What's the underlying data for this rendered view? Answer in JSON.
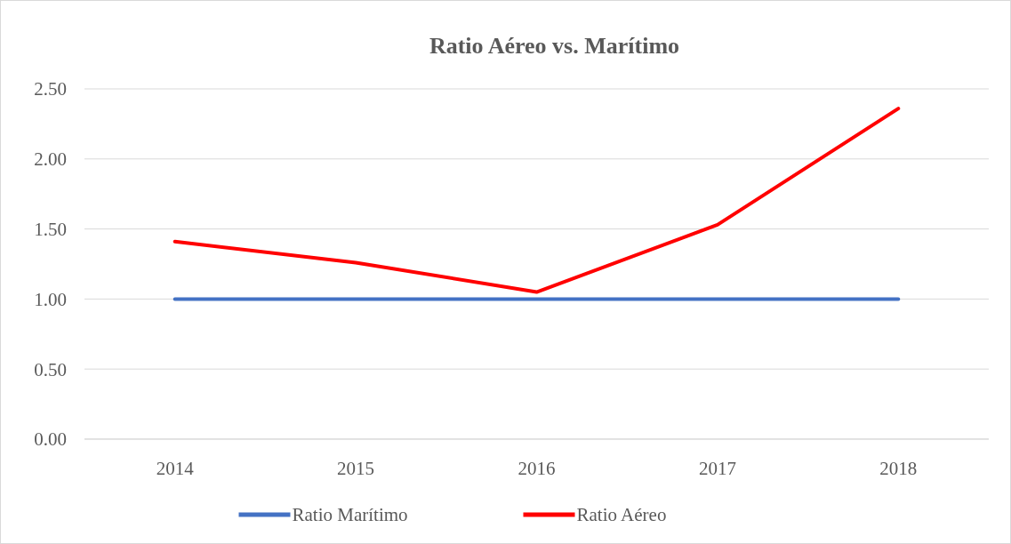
{
  "chart_data": {
    "type": "line",
    "title": "Ratio Aéreo vs. Marítimo",
    "categories": [
      "2014",
      "2015",
      "2016",
      "2017",
      "2018"
    ],
    "series": [
      {
        "name": "Ratio Marítimo",
        "color": "#4472c4",
        "values": [
          1.0,
          1.0,
          1.0,
          1.0,
          1.0
        ]
      },
      {
        "name": "Ratio Aéreo",
        "color": "#ff0000",
        "values": [
          1.41,
          1.26,
          1.05,
          1.53,
          2.36
        ]
      }
    ],
    "ylim": [
      0,
      2.5
    ],
    "yticks": [
      {
        "value": 0,
        "label": "0.00"
      },
      {
        "value": 0.5,
        "label": "0.50"
      },
      {
        "value": 1,
        "label": "1.00"
      },
      {
        "value": 1.5,
        "label": "1.50"
      },
      {
        "value": 2,
        "label": "2.00"
      },
      {
        "value": 2.5,
        "label": "2.50"
      }
    ],
    "grid": "y",
    "legend": "bottom",
    "marker": "none",
    "line_style": "solid"
  }
}
